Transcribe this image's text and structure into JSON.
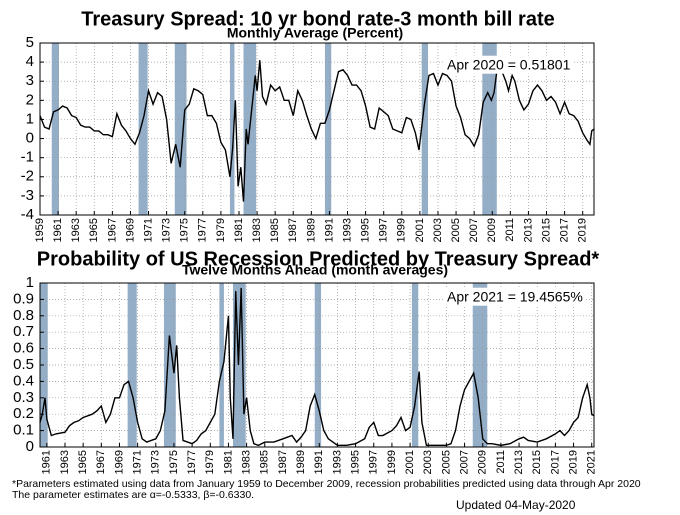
{
  "chart_data": [
    {
      "type": "line",
      "title": "Treasury Spread: 10 yr bond rate-3 month bill rate",
      "subtitle": "Monthly Average (Percent)",
      "annotation": "Apr 2020 = 0.51801",
      "color": "#000000",
      "shade_color": "#94aec8",
      "grid": true,
      "xlim": [
        1959,
        2020.25
      ],
      "ylim": [
        -4,
        5
      ],
      "xticks": [
        1959,
        1961,
        1963,
        1965,
        1967,
        1969,
        1971,
        1973,
        1975,
        1977,
        1979,
        1981,
        1983,
        1985,
        1987,
        1989,
        1991,
        1993,
        1995,
        1997,
        1999,
        2001,
        2003,
        2005,
        2007,
        2009,
        2011,
        2013,
        2015,
        2017,
        2019
      ],
      "yticks": [
        -4,
        -3,
        -2,
        -1,
        0,
        1,
        2,
        3,
        4,
        5
      ],
      "shaded_periods": [
        [
          1960.3,
          1961.1
        ],
        [
          1969.9,
          1970.9
        ],
        [
          1973.9,
          1975.2
        ],
        [
          1980.0,
          1980.5
        ],
        [
          1981.5,
          1982.9
        ],
        [
          1990.5,
          1991.2
        ],
        [
          2001.2,
          2001.9
        ],
        [
          2007.9,
          2009.5
        ]
      ],
      "x": [
        1959.0,
        1959.5,
        1960.0,
        1960.5,
        1961.0,
        1961.5,
        1962.0,
        1962.5,
        1963.0,
        1963.5,
        1964.0,
        1964.5,
        1965.0,
        1965.5,
        1966.0,
        1966.5,
        1967.0,
        1967.5,
        1968.0,
        1968.5,
        1969.0,
        1969.5,
        1970.0,
        1970.5,
        1971.0,
        1971.5,
        1972.0,
        1972.5,
        1973.0,
        1973.5,
        1974.0,
        1974.5,
        1975.0,
        1975.5,
        1976.0,
        1976.5,
        1977.0,
        1977.5,
        1978.0,
        1978.5,
        1979.0,
        1979.5,
        1980.0,
        1980.3,
        1980.6,
        1980.9,
        1981.2,
        1981.5,
        1981.8,
        1982.0,
        1982.4,
        1982.8,
        1983.0,
        1983.3,
        1983.6,
        1984.0,
        1984.5,
        1985.0,
        1985.5,
        1986.0,
        1986.5,
        1987.0,
        1987.5,
        1988.0,
        1988.5,
        1989.0,
        1989.5,
        1990.0,
        1990.5,
        1991.0,
        1991.5,
        1992.0,
        1992.5,
        1993.0,
        1993.5,
        1994.0,
        1994.5,
        1995.0,
        1995.5,
        1996.0,
        1996.5,
        1997.0,
        1997.5,
        1998.0,
        1998.5,
        1999.0,
        1999.5,
        2000.0,
        2000.5,
        2000.9,
        2001.5,
        2002.0,
        2002.5,
        2003.0,
        2003.5,
        2004.0,
        2004.5,
        2005.0,
        2005.5,
        2006.0,
        2006.5,
        2007.0,
        2007.5,
        2008.0,
        2008.5,
        2008.9,
        2009.2,
        2009.5,
        2010.0,
        2010.5,
        2010.8,
        2011.2,
        2011.5,
        2012.0,
        2012.5,
        2013.0,
        2013.5,
        2014.0,
        2014.5,
        2015.0,
        2015.5,
        2016.0,
        2016.5,
        2017.0,
        2017.5,
        2018.0,
        2018.5,
        2019.0,
        2019.5,
        2019.8,
        2020.0,
        2020.3
      ],
      "values": [
        1.2,
        0.6,
        0.5,
        1.4,
        1.5,
        1.7,
        1.6,
        1.2,
        1.1,
        0.7,
        0.6,
        0.6,
        0.4,
        0.4,
        0.2,
        0.2,
        0.1,
        1.3,
        0.7,
        0.4,
        0.0,
        -0.3,
        0.3,
        1.2,
        2.5,
        1.8,
        2.4,
        2.2,
        1.0,
        -1.3,
        -0.3,
        -1.5,
        1.5,
        1.8,
        2.6,
        2.5,
        2.3,
        1.2,
        1.2,
        0.8,
        -0.2,
        -0.6,
        -2.0,
        -0.5,
        2.0,
        -2.5,
        -1.5,
        -3.3,
        0.5,
        -0.3,
        1.5,
        3.3,
        2.5,
        4.1,
        2.2,
        1.8,
        2.8,
        2.5,
        2.7,
        2.0,
        2.0,
        1.2,
        2.5,
        2.0,
        1.2,
        0.5,
        0.0,
        0.8,
        0.8,
        1.5,
        2.5,
        3.5,
        3.6,
        3.3,
        2.8,
        2.8,
        2.5,
        1.7,
        0.6,
        0.5,
        1.6,
        1.4,
        1.2,
        0.5,
        0.4,
        0.3,
        1.1,
        1.0,
        0.3,
        -0.6,
        1.8,
        3.3,
        3.4,
        2.8,
        3.4,
        3.3,
        3.0,
        1.7,
        1.1,
        0.2,
        0.0,
        -0.4,
        0.2,
        1.9,
        2.4,
        2.0,
        2.4,
        3.5,
        3.6,
        3.0,
        2.5,
        3.3,
        3.0,
        2.0,
        1.5,
        1.8,
        2.5,
        2.8,
        2.5,
        2.0,
        2.2,
        1.9,
        1.3,
        1.9,
        1.3,
        1.2,
        0.9,
        0.3,
        -0.1,
        -0.3,
        0.4,
        0.52
      ]
    },
    {
      "type": "line",
      "title": "Probability of US Recession Predicted by Treasury Spread*",
      "subtitle": "Twelve Months Ahead (month averages)",
      "annotation": "Apr 2021 = 19.4565%",
      "color": "#000000",
      "shade_color": "#94aec8",
      "grid": true,
      "xlim": [
        1960.25,
        2021.25
      ],
      "ylim": [
        0,
        1
      ],
      "xticks": [
        1961,
        1963,
        1965,
        1967,
        1969,
        1971,
        1973,
        1975,
        1977,
        1979,
        1981,
        1983,
        1985,
        1987,
        1989,
        1991,
        1993,
        1995,
        1997,
        1999,
        2001,
        2003,
        2005,
        2007,
        2009,
        2011,
        2013,
        2015,
        2017,
        2019,
        2021
      ],
      "yticks": [
        0,
        0.1,
        0.2,
        0.3,
        0.4,
        0.5,
        0.6,
        0.7,
        0.8,
        0.9,
        1
      ],
      "shaded_periods": [
        [
          1960.3,
          1961.1
        ],
        [
          1969.9,
          1970.9
        ],
        [
          1973.9,
          1975.2
        ],
        [
          1980.0,
          1980.5
        ],
        [
          1981.5,
          1982.9
        ],
        [
          1990.5,
          1991.2
        ],
        [
          2001.2,
          2001.9
        ],
        [
          2007.9,
          2009.5
        ]
      ],
      "x": [
        1960.25,
        1960.5,
        1960.8,
        1961,
        1961.5,
        1962,
        1963,
        1963.5,
        1964,
        1964.5,
        1965,
        1966,
        1966.5,
        1967,
        1967.5,
        1968,
        1968.5,
        1969,
        1969.5,
        1970,
        1970.5,
        1971,
        1971.5,
        1972,
        1972.5,
        1973,
        1973.5,
        1974,
        1974.5,
        1975,
        1975.3,
        1975.6,
        1976,
        1976.5,
        1977,
        1977.5,
        1978,
        1978.5,
        1979,
        1979.5,
        1980,
        1980.5,
        1981,
        1981.2,
        1981.5,
        1981.8,
        1982.1,
        1982.4,
        1982.7,
        1983,
        1983.4,
        1983.8,
        1984.3,
        1985,
        1986,
        1987,
        1988,
        1988.5,
        1989,
        1989.5,
        1990,
        1990.5,
        1991,
        1991.5,
        1992,
        1993,
        1994,
        1995,
        1996,
        1996.5,
        1997,
        1997.5,
        1998,
        1999,
        1999.5,
        2000,
        2000.5,
        2001,
        2001.5,
        2002,
        2002.3,
        2002.8,
        2003,
        2004,
        2005,
        2005.5,
        2006,
        2006.5,
        2007,
        2007.5,
        2008,
        2008.5,
        2009,
        2009.5,
        2010,
        2011,
        2012,
        2013,
        2013.5,
        2014,
        2015,
        2016,
        2017,
        2017.5,
        2018,
        2018.5,
        2019,
        2019.5,
        2020,
        2020.5,
        2020.8,
        2021,
        2021.25
      ],
      "values": [
        0.15,
        0.2,
        0.3,
        0.17,
        0.07,
        0.08,
        0.09,
        0.13,
        0.15,
        0.16,
        0.18,
        0.2,
        0.22,
        0.25,
        0.15,
        0.2,
        0.3,
        0.3,
        0.38,
        0.4,
        0.3,
        0.15,
        0.05,
        0.03,
        0.04,
        0.05,
        0.1,
        0.22,
        0.68,
        0.45,
        0.62,
        0.3,
        0.04,
        0.03,
        0.02,
        0.04,
        0.08,
        0.1,
        0.15,
        0.2,
        0.4,
        0.52,
        0.8,
        0.3,
        0.05,
        0.95,
        0.5,
        0.97,
        0.2,
        0.3,
        0.1,
        0.02,
        0.01,
        0.03,
        0.03,
        0.05,
        0.07,
        0.03,
        0.06,
        0.1,
        0.25,
        0.32,
        0.22,
        0.1,
        0.05,
        0.01,
        0.01,
        0.02,
        0.05,
        0.12,
        0.15,
        0.07,
        0.07,
        0.1,
        0.13,
        0.18,
        0.1,
        0.12,
        0.25,
        0.46,
        0.15,
        0.01,
        0.01,
        0.01,
        0.01,
        0.02,
        0.1,
        0.25,
        0.35,
        0.4,
        0.45,
        0.3,
        0.05,
        0.02,
        0.02,
        0.01,
        0.02,
        0.05,
        0.06,
        0.04,
        0.03,
        0.05,
        0.08,
        0.1,
        0.07,
        0.1,
        0.15,
        0.18,
        0.3,
        0.38,
        0.3,
        0.2,
        0.19
      ]
    }
  ],
  "footnotes": [
    "*Parameters estimated using data from January 1959 to December 2009, recession probabilities predicted using data through Apr 2020",
    "The parameter estimates are α=-0.5333, β=-0.6330."
  ],
  "updated": "Updated 04-May-2020"
}
